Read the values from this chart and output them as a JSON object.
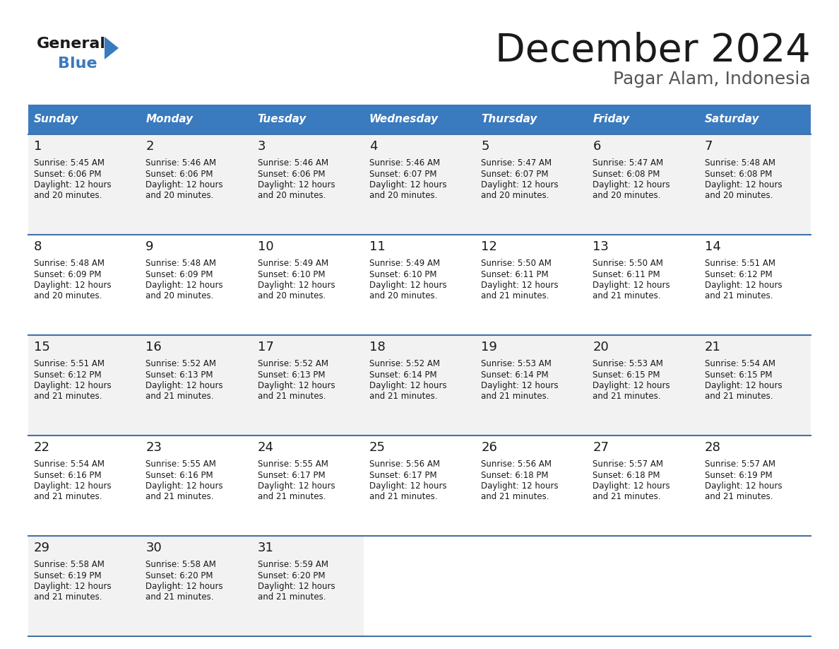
{
  "title": "December 2024",
  "subtitle": "Pagar Alam, Indonesia",
  "header_color": "#3a7abf",
  "header_text_color": "#ffffff",
  "days_of_week": [
    "Sunday",
    "Monday",
    "Tuesday",
    "Wednesday",
    "Thursday",
    "Friday",
    "Saturday"
  ],
  "weeks": [
    [
      {
        "day": "1",
        "sunrise": "5:45 AM",
        "sunset": "6:06 PM",
        "daylight_h": "12 hours",
        "daylight_m": "and 20 minutes."
      },
      {
        "day": "2",
        "sunrise": "5:46 AM",
        "sunset": "6:06 PM",
        "daylight_h": "12 hours",
        "daylight_m": "and 20 minutes."
      },
      {
        "day": "3",
        "sunrise": "5:46 AM",
        "sunset": "6:06 PM",
        "daylight_h": "12 hours",
        "daylight_m": "and 20 minutes."
      },
      {
        "day": "4",
        "sunrise": "5:46 AM",
        "sunset": "6:07 PM",
        "daylight_h": "12 hours",
        "daylight_m": "and 20 minutes."
      },
      {
        "day": "5",
        "sunrise": "5:47 AM",
        "sunset": "6:07 PM",
        "daylight_h": "12 hours",
        "daylight_m": "and 20 minutes."
      },
      {
        "day": "6",
        "sunrise": "5:47 AM",
        "sunset": "6:08 PM",
        "daylight_h": "12 hours",
        "daylight_m": "and 20 minutes."
      },
      {
        "day": "7",
        "sunrise": "5:48 AM",
        "sunset": "6:08 PM",
        "daylight_h": "12 hours",
        "daylight_m": "and 20 minutes."
      }
    ],
    [
      {
        "day": "8",
        "sunrise": "5:48 AM",
        "sunset": "6:09 PM",
        "daylight_h": "12 hours",
        "daylight_m": "and 20 minutes."
      },
      {
        "day": "9",
        "sunrise": "5:48 AM",
        "sunset": "6:09 PM",
        "daylight_h": "12 hours",
        "daylight_m": "and 20 minutes."
      },
      {
        "day": "10",
        "sunrise": "5:49 AM",
        "sunset": "6:10 PM",
        "daylight_h": "12 hours",
        "daylight_m": "and 20 minutes."
      },
      {
        "day": "11",
        "sunrise": "5:49 AM",
        "sunset": "6:10 PM",
        "daylight_h": "12 hours",
        "daylight_m": "and 20 minutes."
      },
      {
        "day": "12",
        "sunrise": "5:50 AM",
        "sunset": "6:11 PM",
        "daylight_h": "12 hours",
        "daylight_m": "and 21 minutes."
      },
      {
        "day": "13",
        "sunrise": "5:50 AM",
        "sunset": "6:11 PM",
        "daylight_h": "12 hours",
        "daylight_m": "and 21 minutes."
      },
      {
        "day": "14",
        "sunrise": "5:51 AM",
        "sunset": "6:12 PM",
        "daylight_h": "12 hours",
        "daylight_m": "and 21 minutes."
      }
    ],
    [
      {
        "day": "15",
        "sunrise": "5:51 AM",
        "sunset": "6:12 PM",
        "daylight_h": "12 hours",
        "daylight_m": "and 21 minutes."
      },
      {
        "day": "16",
        "sunrise": "5:52 AM",
        "sunset": "6:13 PM",
        "daylight_h": "12 hours",
        "daylight_m": "and 21 minutes."
      },
      {
        "day": "17",
        "sunrise": "5:52 AM",
        "sunset": "6:13 PM",
        "daylight_h": "12 hours",
        "daylight_m": "and 21 minutes."
      },
      {
        "day": "18",
        "sunrise": "5:52 AM",
        "sunset": "6:14 PM",
        "daylight_h": "12 hours",
        "daylight_m": "and 21 minutes."
      },
      {
        "day": "19",
        "sunrise": "5:53 AM",
        "sunset": "6:14 PM",
        "daylight_h": "12 hours",
        "daylight_m": "and 21 minutes."
      },
      {
        "day": "20",
        "sunrise": "5:53 AM",
        "sunset": "6:15 PM",
        "daylight_h": "12 hours",
        "daylight_m": "and 21 minutes."
      },
      {
        "day": "21",
        "sunrise": "5:54 AM",
        "sunset": "6:15 PM",
        "daylight_h": "12 hours",
        "daylight_m": "and 21 minutes."
      }
    ],
    [
      {
        "day": "22",
        "sunrise": "5:54 AM",
        "sunset": "6:16 PM",
        "daylight_h": "12 hours",
        "daylight_m": "and 21 minutes."
      },
      {
        "day": "23",
        "sunrise": "5:55 AM",
        "sunset": "6:16 PM",
        "daylight_h": "12 hours",
        "daylight_m": "and 21 minutes."
      },
      {
        "day": "24",
        "sunrise": "5:55 AM",
        "sunset": "6:17 PM",
        "daylight_h": "12 hours",
        "daylight_m": "and 21 minutes."
      },
      {
        "day": "25",
        "sunrise": "5:56 AM",
        "sunset": "6:17 PM",
        "daylight_h": "12 hours",
        "daylight_m": "and 21 minutes."
      },
      {
        "day": "26",
        "sunrise": "5:56 AM",
        "sunset": "6:18 PM",
        "daylight_h": "12 hours",
        "daylight_m": "and 21 minutes."
      },
      {
        "day": "27",
        "sunrise": "5:57 AM",
        "sunset": "6:18 PM",
        "daylight_h": "12 hours",
        "daylight_m": "and 21 minutes."
      },
      {
        "day": "28",
        "sunrise": "5:57 AM",
        "sunset": "6:19 PM",
        "daylight_h": "12 hours",
        "daylight_m": "and 21 minutes."
      }
    ],
    [
      {
        "day": "29",
        "sunrise": "5:58 AM",
        "sunset": "6:19 PM",
        "daylight_h": "12 hours",
        "daylight_m": "and 21 minutes."
      },
      {
        "day": "30",
        "sunrise": "5:58 AM",
        "sunset": "6:20 PM",
        "daylight_h": "12 hours",
        "daylight_m": "and 21 minutes."
      },
      {
        "day": "31",
        "sunrise": "5:59 AM",
        "sunset": "6:20 PM",
        "daylight_h": "12 hours",
        "daylight_m": "and 21 minutes."
      },
      null,
      null,
      null,
      null
    ]
  ],
  "cell_bg_even": "#f2f2f2",
  "cell_bg_odd": "#ffffff",
  "empty_cell_bg": "#ffffff",
  "row_line_color": "#4472a8",
  "logo_general_color": "#1a1a1a",
  "logo_blue_color": "#3a7abf",
  "title_color": "#1a1a1a",
  "subtitle_color": "#555555",
  "day_num_color": "#1a1a1a",
  "cell_text_color": "#1a1a1a"
}
